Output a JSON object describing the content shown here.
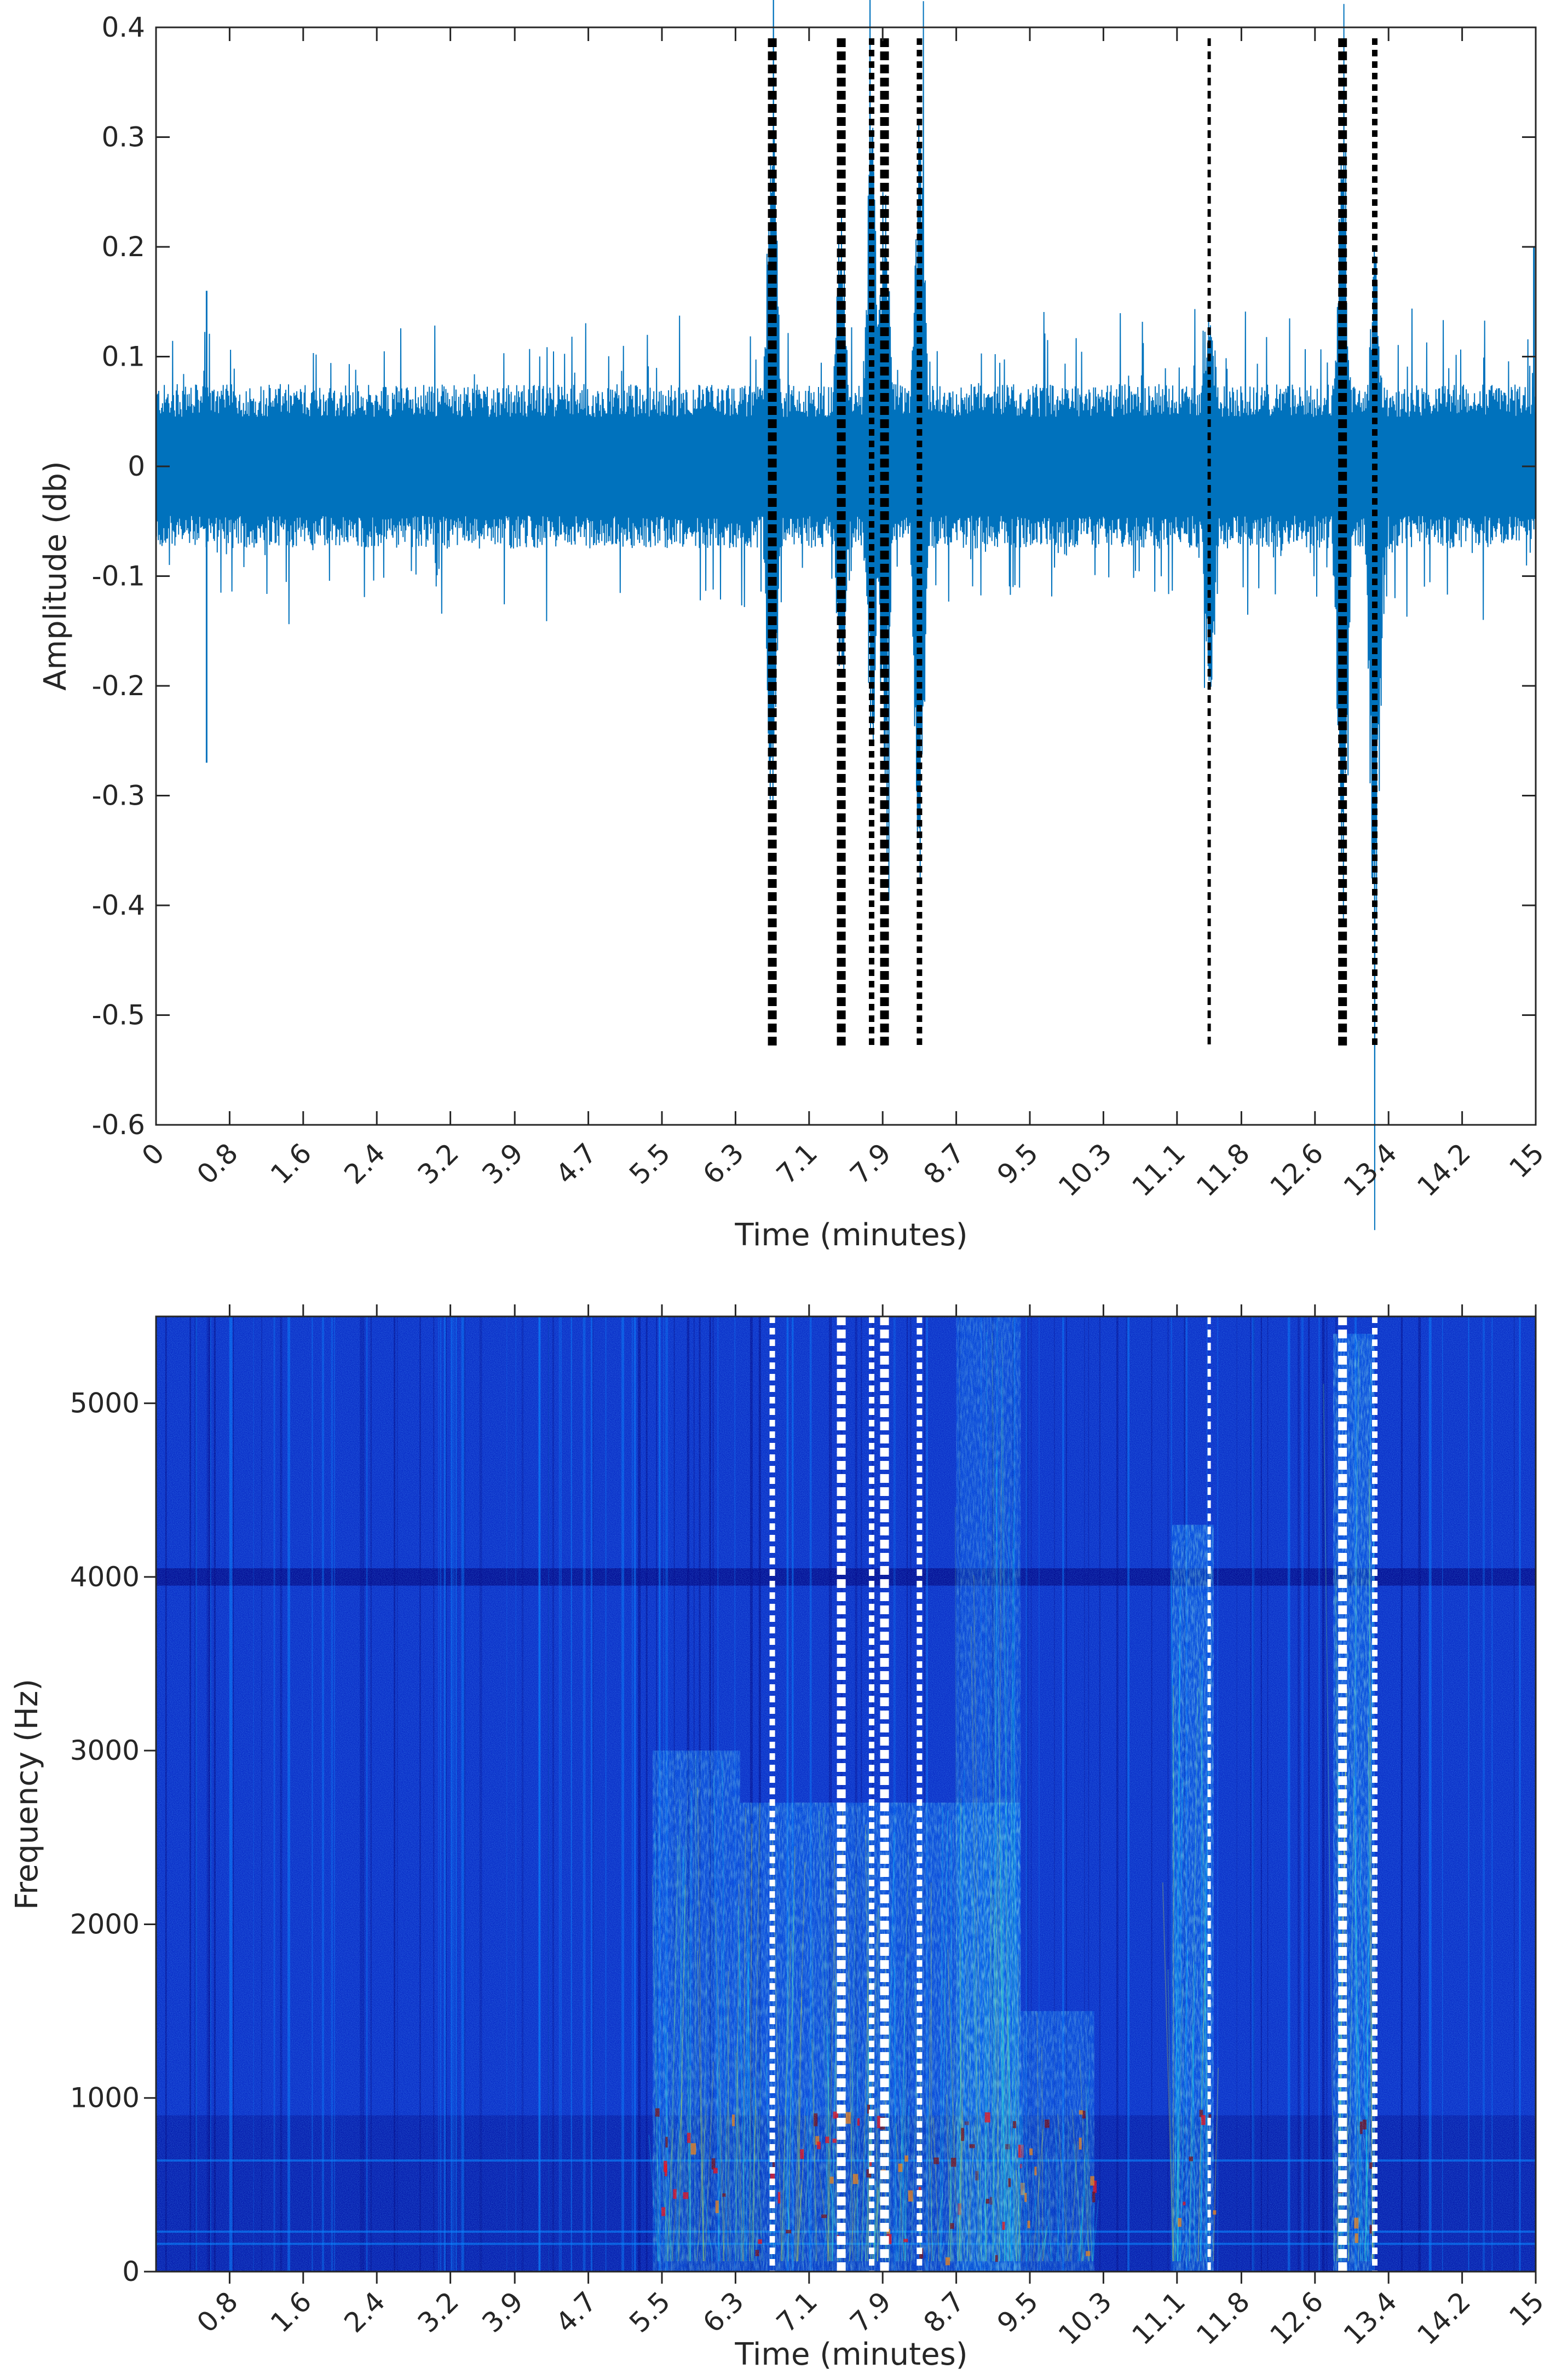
{
  "chart_data": [
    {
      "type": "line",
      "panel": "waveform",
      "xlabel": "Time (minutes)",
      "ylabel": "Amplitude (db)",
      "xlim": [
        0,
        15
      ],
      "ylim": [
        -0.6,
        0.4
      ],
      "x_tick_values": [
        0,
        0.8,
        1.6,
        2.4,
        3.2,
        3.9,
        4.7,
        5.5,
        6.3,
        7.1,
        7.9,
        8.7,
        9.5,
        10.3,
        11.1,
        11.8,
        12.6,
        13.4,
        14.2,
        15
      ],
      "x_tick_labels": [
        "0",
        "0.8",
        "1.6",
        "2.4",
        "3.2",
        "3.9",
        "4.7",
        "5.5",
        "6.3",
        "7.1",
        "7.9",
        "8.7",
        "9.5",
        "10.3",
        "11.1",
        "11.8",
        "12.6",
        "13.4",
        "14.2",
        "15"
      ],
      "y_ticks": [
        0.4,
        0.3,
        0.2,
        0.1,
        0,
        -0.1,
        -0.2,
        -0.3,
        -0.4,
        -0.5,
        -0.6
      ],
      "y_tick_labels": [
        "0.4",
        "0.3",
        "0.2",
        "0.1",
        "0",
        "-0.1",
        "-0.2",
        "-0.3",
        "-0.4",
        "-0.5",
        "-0.6"
      ],
      "series_color": "#0072BD",
      "baseline_envelope": 0.06,
      "events": [
        {
          "x": 6.7,
          "peak": 0.38,
          "trough": -0.38
        },
        {
          "x": 7.45,
          "peak": 0.28,
          "trough": -0.26
        },
        {
          "x": 7.78,
          "peak": 0.37,
          "trough": -0.31
        },
        {
          "x": 7.92,
          "peak": 0.3,
          "trough": -0.33
        },
        {
          "x": 8.3,
          "peak": 0.37,
          "trough": -0.42
        },
        {
          "x": 11.45,
          "peak": 0.18,
          "trough": -0.26
        },
        {
          "x": 12.9,
          "peak": 0.33,
          "trough": -0.45
        },
        {
          "x": 13.25,
          "peak": 0.22,
          "trough": -0.52
        }
      ],
      "notable_spikes": [
        {
          "x": 0.55,
          "y": -0.27
        },
        {
          "x": 0.55,
          "y": 0.16
        },
        {
          "x": 14.98,
          "y": 0.2
        }
      ],
      "marker_lines": [
        {
          "x": 6.7,
          "style": "thick"
        },
        {
          "x": 7.45,
          "style": "thick"
        },
        {
          "x": 7.78,
          "style": "medium"
        },
        {
          "x": 7.92,
          "style": "thick"
        },
        {
          "x": 8.3,
          "style": "medium"
        },
        {
          "x": 11.45,
          "style": "thin"
        },
        {
          "x": 12.9,
          "style": "thick"
        },
        {
          "x": 13.25,
          "style": "medium"
        }
      ],
      "marker_line_y_range": [
        -0.53,
        0.39
      ],
      "marker_color": "#000000"
    },
    {
      "type": "heatmap",
      "panel": "spectrogram",
      "xlabel": "Time (minutes)",
      "ylabel": "Frequency (Hz)",
      "xlim": [
        0,
        15
      ],
      "ylim": [
        0,
        5500
      ],
      "x_tick_values": [
        0.8,
        1.6,
        2.4,
        3.2,
        3.9,
        4.7,
        5.5,
        6.3,
        7.1,
        7.9,
        8.7,
        9.5,
        10.3,
        11.1,
        11.8,
        12.6,
        13.4,
        14.2,
        15
      ],
      "x_tick_labels": [
        "0.8",
        "1.6",
        "2.4",
        "3.2",
        "3.9",
        "4.7",
        "5.5",
        "6.3",
        "7.1",
        "7.9",
        "8.7",
        "9.5",
        "10.3",
        "11.1",
        "11.8",
        "12.6",
        "13.4",
        "14.2",
        "15"
      ],
      "y_ticks": [
        0,
        1000,
        2000,
        3000,
        4000,
        5000
      ],
      "y_tick_labels": [
        "0",
        "1000",
        "2000",
        "3000",
        "4000",
        "5000"
      ],
      "colormap": [
        "#00007F",
        "#0000FF",
        "#007FFF",
        "#00FFFF",
        "#7FFF7F",
        "#FFFF00",
        "#FF7F00",
        "#FF0000",
        "#7F0000"
      ],
      "background_color": "#0A2FC8",
      "dark_band_hz": [
        3950,
        4050
      ],
      "activity_regions": [
        {
          "t0": 5.4,
          "t1": 6.35,
          "f0": 0,
          "f1": 3000,
          "intensity": 0.55
        },
        {
          "t0": 6.35,
          "t1": 9.4,
          "f0": 0,
          "f1": 2700,
          "intensity": 0.6
        },
        {
          "t0": 8.7,
          "t1": 9.4,
          "f0": 0,
          "f1": 5500,
          "intensity": 0.45
        },
        {
          "t0": 9.4,
          "t1": 10.2,
          "f0": 0,
          "f1": 1500,
          "intensity": 0.5
        },
        {
          "t0": 11.05,
          "t1": 11.5,
          "f0": 0,
          "f1": 4300,
          "intensity": 0.7
        },
        {
          "t0": 12.8,
          "t1": 13.25,
          "f0": 0,
          "f1": 5400,
          "intensity": 0.7
        }
      ],
      "marker_lines": [
        {
          "x": 6.7,
          "style": "medium"
        },
        {
          "x": 7.45,
          "style": "thick"
        },
        {
          "x": 7.78,
          "style": "medium"
        },
        {
          "x": 7.92,
          "style": "thick"
        },
        {
          "x": 8.3,
          "style": "medium"
        },
        {
          "x": 11.45,
          "style": "thin"
        },
        {
          "x": 12.9,
          "style": "thick"
        },
        {
          "x": 13.25,
          "style": "medium"
        }
      ],
      "marker_color": "#FFFFFF"
    }
  ]
}
